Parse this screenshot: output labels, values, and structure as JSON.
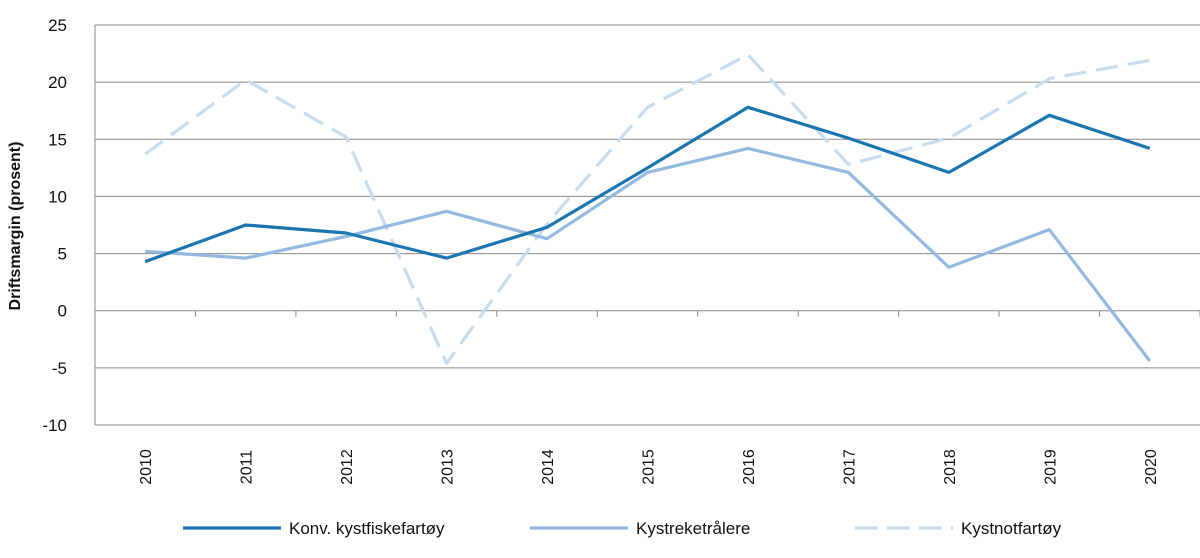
{
  "chart_data": {
    "type": "line",
    "title": "",
    "xlabel": "",
    "ylabel": "Driftsmargin (prosent)",
    "ylim": [
      -10,
      25
    ],
    "yticks": [
      25,
      20,
      15,
      10,
      5,
      0,
      -5,
      -10
    ],
    "ytick_labels": [
      "25",
      "20",
      "15",
      "10",
      "5",
      "0",
      "-5",
      "-10"
    ],
    "grid": "horizontal",
    "legend_position": "bottom",
    "categories": [
      "2010",
      "2011",
      "2012",
      "2013",
      "2014",
      "2015",
      "2016",
      "2017",
      "2018",
      "2019",
      "2020"
    ],
    "series": [
      {
        "name": "Konv. kystfiskefartøy",
        "values": [
          4.3,
          7.5,
          6.8,
          4.6,
          7.3,
          12.5,
          17.8,
          15.1,
          12.1,
          17.1,
          14.2
        ],
        "color": "#1a75b0",
        "style": "solid"
      },
      {
        "name": "Kystreketrålere",
        "values": [
          5.2,
          4.6,
          6.5,
          8.7,
          6.3,
          12.1,
          14.2,
          12.1,
          3.8,
          7.1,
          -4.4
        ],
        "color": "#94b9e0",
        "style": "solid"
      },
      {
        "name": "Kystnotfartøy",
        "values": [
          13.7,
          20.2,
          15.2,
          -4.6,
          7.6,
          17.8,
          22.4,
          12.8,
          15.1,
          20.3,
          21.9
        ],
        "color": "#c9dbef",
        "style": "dashed"
      }
    ]
  }
}
